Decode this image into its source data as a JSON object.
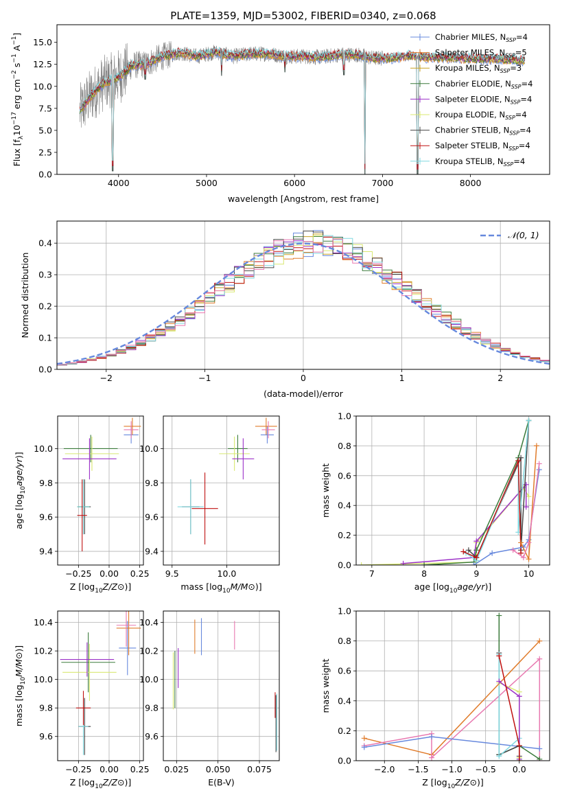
{
  "figure_title": "PLATE=1359, MJD=53002, FIBERID=0340, z=0.068",
  "colors": {
    "c1": "#6688dd",
    "c2": "#e07b2a",
    "c3": "#c8a020",
    "c4": "#3a7a3a",
    "c5": "#9b30c8",
    "c6": "#d8e870",
    "c7": "#444444",
    "c8": "#c01010",
    "c9": "#80d8e0",
    "pink": "#e878b0",
    "gray": "#808080",
    "grid": "#b0b0b0"
  },
  "chart_data": [
    {
      "type": "line",
      "title": "PLATE=1359, MJD=53002, FIBERID=0340, z=0.068",
      "xlabel": "wavelength [Angstrom, rest frame]",
      "ylabel": "Flux [f",
      "xlim": [
        3300,
        8900
      ],
      "ylim": [
        0,
        17
      ],
      "xticks": [
        "4000",
        "5000",
        "6000",
        "7000",
        "8000"
      ],
      "yticks": [
        "0.0",
        "2.5",
        "5.0",
        "7.5",
        "10.0",
        "12.5",
        "15.0"
      ],
      "legend_position": "right",
      "legend": [
        {
          "label": "Chabrier MILES, N",
          "sub": "SSP",
          "suffix": "=4",
          "color": "c1"
        },
        {
          "label": "Salpeter MILES, N",
          "sub": "SSP",
          "suffix": "=5",
          "color": "c2"
        },
        {
          "label": "Kroupa MILES, N",
          "sub": "SSP",
          "suffix": "=3",
          "color": "c3"
        },
        {
          "label": "Chabrier ELODIE, N",
          "sub": "SSP",
          "suffix": "=4",
          "color": "c4"
        },
        {
          "label": "Salpeter ELODIE, N",
          "sub": "SSP",
          "suffix": "=4",
          "color": "c5"
        },
        {
          "label": "Kroupa ELODIE, N",
          "sub": "SSP",
          "suffix": "=4",
          "color": "c6"
        },
        {
          "label": "Chabrier STELIB, N",
          "sub": "SSP",
          "suffix": "=4",
          "color": "c7"
        },
        {
          "label": "Salpeter STELIB, N",
          "sub": "SSP",
          "suffix": "=4",
          "color": "c8"
        },
        {
          "label": "Kroupa STELIB, N",
          "sub": "SSP",
          "suffix": "=4",
          "color": "c9"
        }
      ],
      "continuum": [
        [
          3550,
          7.0
        ],
        [
          3650,
          8.5
        ],
        [
          3750,
          9.6
        ],
        [
          3850,
          10.5
        ],
        [
          3950,
          10.8
        ],
        [
          4050,
          11.4
        ],
        [
          4150,
          12.4
        ],
        [
          4300,
          12.5
        ],
        [
          4500,
          13.4
        ],
        [
          4700,
          13.8
        ],
        [
          4900,
          13.4
        ],
        [
          5100,
          13.9
        ],
        [
          5300,
          13.4
        ],
        [
          5500,
          13.7
        ],
        [
          5700,
          13.7
        ],
        [
          5900,
          13.4
        ],
        [
          6100,
          13.4
        ],
        [
          6300,
          13.3
        ],
        [
          6500,
          13.6
        ],
        [
          6700,
          13.6
        ],
        [
          6900,
          13.2
        ],
        [
          7100,
          13.2
        ],
        [
          7300,
          13.5
        ],
        [
          7500,
          13.3
        ],
        [
          7700,
          13.3
        ],
        [
          7900,
          13.2
        ],
        [
          8100,
          13.1
        ],
        [
          8300,
          13.1
        ],
        [
          8500,
          13.0
        ],
        [
          8600,
          12.9
        ]
      ],
      "dips": [
        [
          3934,
          0.4
        ],
        [
          4300,
          10.8
        ],
        [
          5170,
          11.2
        ],
        [
          5890,
          11.6
        ],
        [
          6563,
          11.3
        ],
        [
          6800,
          0.0
        ],
        [
          7400,
          0.0
        ]
      ]
    },
    {
      "type": "step",
      "xlabel": "(data-model)/error",
      "ylabel": "Normed distribution",
      "xlim": [
        -2.5,
        2.5
      ],
      "ylim": [
        0,
        0.47
      ],
      "xticks": [
        -2,
        -1,
        0,
        1,
        2
      ],
      "xticklabels": [
        "−2",
        "−1",
        "0",
        "1",
        "2"
      ],
      "yticks": [
        0.0,
        0.1,
        0.2,
        0.3,
        0.4
      ],
      "yticklabels": [
        "0.0",
        "0.1",
        "0.2",
        "0.3",
        "0.4"
      ],
      "legend_label": "𝒩(0, 1)",
      "legend_position": "upper right",
      "bin_width": 0.1,
      "bins_from": -2.5,
      "bins_to": 2.5
    },
    {
      "type": "errorbar",
      "xlabel": "Z [log",
      "ylabel": "age  [log",
      "xlim": [
        -0.42,
        0.28
      ],
      "ylim": [
        9.32,
        10.19
      ],
      "xticks": [
        -0.25,
        0.0,
        0.25
      ],
      "xticklabels": [
        "−0.25",
        "0.00",
        "0.25"
      ],
      "yticks": [
        9.4,
        9.6,
        9.8,
        10.0
      ],
      "yticklabels": [
        "9.4",
        "9.6",
        "9.8",
        "10.0"
      ],
      "points": [
        {
          "x": 0.18,
          "xerr": 0.06,
          "y": 10.08,
          "yerr": 0.05,
          "color": "c1"
        },
        {
          "x": 0.19,
          "xerr": 0.07,
          "y": 10.13,
          "yerr": 0.05,
          "color": "c2"
        },
        {
          "x": 0.18,
          "xerr": 0.06,
          "y": 10.11,
          "yerr": 0.05,
          "color": "pink"
        },
        {
          "x": -0.2,
          "xerr": 0.05,
          "y": 9.66,
          "yerr": 0.16,
          "color": "c7"
        },
        {
          "x": -0.21,
          "xerr": 0.05,
          "y": 9.66,
          "yerr": 0.16,
          "color": "c4"
        },
        {
          "x": -0.21,
          "xerr": 0.05,
          "y": 9.66,
          "yerr": 0.16,
          "color": "c9"
        },
        {
          "x": -0.22,
          "xerr": 0.04,
          "y": 9.61,
          "yerr": 0.21,
          "color": "c8"
        },
        {
          "x": -0.15,
          "xerr": 0.22,
          "y": 10.0,
          "yerr": 0.08,
          "color": "c4"
        },
        {
          "x": -0.14,
          "xerr": 0.22,
          "y": 9.97,
          "yerr": 0.1,
          "color": "c6"
        },
        {
          "x": -0.16,
          "xerr": 0.22,
          "y": 9.94,
          "yerr": 0.12,
          "color": "c5"
        }
      ]
    },
    {
      "type": "errorbar",
      "xlabel": "mass [log",
      "ylabel": "",
      "xlim": [
        9.42,
        10.48
      ],
      "ylim": [
        9.32,
        10.19
      ],
      "xticks": [
        9.5,
        10.0
      ],
      "xticklabels": [
        "9.5",
        "10.0"
      ],
      "yticks": [
        9.4,
        9.6,
        9.8,
        10.0
      ],
      "yticklabels": [
        "9.4",
        "9.6",
        "9.8",
        "10.0"
      ],
      "points": [
        {
          "x": 10.37,
          "xerr": 0.06,
          "y": 10.08,
          "yerr": 0.05,
          "color": "c1"
        },
        {
          "x": 10.36,
          "xerr": 0.1,
          "y": 10.13,
          "yerr": 0.05,
          "color": "c2"
        },
        {
          "x": 10.38,
          "xerr": 0.06,
          "y": 10.11,
          "yerr": 0.05,
          "color": "pink"
        },
        {
          "x": 9.67,
          "xerr": 0.08,
          "y": 9.66,
          "yerr": 0.16,
          "color": "c7"
        },
        {
          "x": 9.67,
          "xerr": 0.12,
          "y": 9.66,
          "yerr": 0.16,
          "color": "c9"
        },
        {
          "x": 9.8,
          "xerr": 0.12,
          "y": 9.65,
          "yerr": 0.21,
          "color": "c8"
        },
        {
          "x": 10.1,
          "xerr": 0.09,
          "y": 10.0,
          "yerr": 0.08,
          "color": "c4"
        },
        {
          "x": 10.07,
          "xerr": 0.14,
          "y": 9.97,
          "yerr": 0.1,
          "color": "c6"
        },
        {
          "x": 10.15,
          "xerr": 0.1,
          "y": 9.94,
          "yerr": 0.12,
          "color": "c5"
        }
      ]
    },
    {
      "type": "line",
      "xlabel": "age  [log",
      "ylabel": "mass weight",
      "xlim": [
        6.7,
        10.4
      ],
      "ylim": [
        0,
        1.0
      ],
      "xticks": [
        7,
        8,
        9,
        10
      ],
      "xticklabels": [
        "7",
        "8",
        "9",
        "10"
      ],
      "yticks": [
        0.0,
        0.2,
        0.4,
        0.6,
        0.8,
        1.0
      ],
      "yticklabels": [
        "0.0",
        "0.2",
        "0.4",
        "0.6",
        "0.8",
        "1.0"
      ],
      "series": [
        {
          "color": "c6",
          "points": [
            [
              6.8,
              0.0
            ],
            [
              9.0,
              0.02
            ],
            [
              9.0,
              0.15
            ],
            [
              9.9,
              0.52
            ],
            [
              10.0,
              0.46
            ]
          ]
        },
        {
          "color": "c5",
          "points": [
            [
              7.6,
              0.01
            ],
            [
              8.95,
              0.05
            ],
            [
              9.0,
              0.16
            ],
            [
              9.95,
              0.54
            ],
            [
              9.95,
              0.39
            ]
          ]
        },
        {
          "color": "c4",
          "points": [
            [
              8.0,
              0.0
            ],
            [
              8.95,
              0.02
            ],
            [
              9.0,
              0.1
            ],
            [
              9.8,
              0.72
            ],
            [
              10.0,
              0.97
            ]
          ]
        },
        {
          "color": "c7",
          "points": [
            [
              8.85,
              0.1
            ],
            [
              9.0,
              0.05
            ],
            [
              9.85,
              0.72
            ],
            [
              9.85,
              0.1
            ],
            [
              10.0,
              0.97
            ]
          ]
        },
        {
          "color": "c9",
          "points": [
            [
              8.8,
              0.08
            ],
            [
              9.0,
              0.03
            ],
            [
              9.8,
              0.7
            ],
            [
              9.8,
              0.22
            ],
            [
              10.0,
              0.97
            ]
          ]
        },
        {
          "color": "c8",
          "points": [
            [
              8.75,
              0.09
            ],
            [
              9.0,
              0.05
            ],
            [
              9.8,
              0.7
            ],
            [
              9.85,
              0.08
            ]
          ]
        },
        {
          "color": "c1",
          "points": [
            [
              8.95,
              0.0
            ],
            [
              9.3,
              0.08
            ],
            [
              9.9,
              0.12
            ],
            [
              10.0,
              0.17
            ],
            [
              10.2,
              0.64
            ]
          ]
        },
        {
          "color": "c2",
          "points": [
            [
              9.85,
              0.15
            ],
            [
              10.0,
              0.04
            ],
            [
              10.15,
              0.8
            ]
          ]
        },
        {
          "color": "pink",
          "points": [
            [
              9.7,
              0.1
            ],
            [
              9.9,
              0.05
            ],
            [
              10.0,
              0.15
            ],
            [
              10.2,
              0.68
            ]
          ]
        }
      ]
    },
    {
      "type": "errorbar",
      "xlabel": "Z [log",
      "ylabel": "mass [log",
      "xlim": [
        -0.42,
        0.28
      ],
      "ylim": [
        9.43,
        10.48
      ],
      "xticks": [
        -0.25,
        0.0,
        0.25
      ],
      "xticklabels": [
        "−0.25",
        "0.00",
        "0.25"
      ],
      "yticks": [
        9.6,
        9.8,
        10.0,
        10.2,
        10.4
      ],
      "yticklabels": [
        "9.6",
        "9.8",
        "10.0",
        "10.2",
        "10.4"
      ],
      "points": [
        {
          "x": 0.15,
          "xerr": 0.07,
          "y": 10.22,
          "yerr": 0.19,
          "color": "c1"
        },
        {
          "x": 0.16,
          "xerr": 0.1,
          "y": 10.36,
          "yerr": 0.19,
          "color": "c2"
        },
        {
          "x": 0.14,
          "xerr": 0.08,
          "y": 10.38,
          "yerr": 0.15,
          "color": "pink"
        },
        {
          "x": -0.2,
          "xerr": 0.05,
          "y": 9.67,
          "yerr": 0.2,
          "color": "c7"
        },
        {
          "x": -0.21,
          "xerr": 0.04,
          "y": 9.67,
          "yerr": 0.2,
          "color": "c9"
        },
        {
          "x": -0.21,
          "xerr": 0.06,
          "y": 9.8,
          "yerr": 0.12,
          "color": "c8"
        },
        {
          "x": -0.17,
          "xerr": 0.22,
          "y": 10.12,
          "yerr": 0.21,
          "color": "c4"
        },
        {
          "x": -0.16,
          "xerr": 0.22,
          "y": 10.05,
          "yerr": 0.2,
          "color": "c6"
        },
        {
          "x": -0.18,
          "xerr": 0.22,
          "y": 10.14,
          "yerr": 0.12,
          "color": "c5"
        }
      ]
    },
    {
      "type": "errorbar",
      "xlabel": "E(B-V)",
      "ylabel": "",
      "xlim": [
        0.017,
        0.087
      ],
      "ylim": [
        9.43,
        10.48
      ],
      "xticks": [
        0.025,
        0.05,
        0.075
      ],
      "xticklabels": [
        "0.025",
        "0.050",
        "0.075"
      ],
      "yticks": [
        9.6,
        9.8,
        10.0,
        10.2,
        10.4
      ],
      "yticklabels": [
        "9.6",
        "9.8",
        "10.0",
        "10.2",
        "10.4"
      ],
      "points": [
        {
          "x": 0.04,
          "xerr": 0,
          "y": 10.3,
          "yerr": 0.13,
          "color": "c1"
        },
        {
          "x": 0.036,
          "xerr": 0,
          "y": 10.3,
          "yerr": 0.12,
          "color": "c2"
        },
        {
          "x": 0.06,
          "xerr": 0,
          "y": 10.31,
          "yerr": 0.1,
          "color": "pink"
        },
        {
          "x": 0.024,
          "xerr": 0,
          "y": 10.0,
          "yerr": 0.2,
          "color": "c4"
        },
        {
          "x": 0.023,
          "xerr": 0,
          "y": 9.99,
          "yerr": 0.2,
          "color": "c6"
        },
        {
          "x": 0.026,
          "xerr": 0,
          "y": 10.08,
          "yerr": 0.14,
          "color": "c5"
        },
        {
          "x": 0.085,
          "xerr": 0,
          "y": 9.69,
          "yerr": 0.2,
          "color": "c7"
        },
        {
          "x": 0.0855,
          "xerr": 0,
          "y": 9.7,
          "yerr": 0.2,
          "color": "c9"
        },
        {
          "x": 0.0845,
          "xerr": 0,
          "y": 9.82,
          "yerr": 0.09,
          "color": "c8"
        }
      ]
    },
    {
      "type": "line",
      "xlabel": "Z [log",
      "ylabel": "mass weight",
      "xlim": [
        -2.42,
        0.45
      ],
      "ylim": [
        0,
        1.0
      ],
      "xticks": [
        -2.0,
        -1.5,
        -1.0,
        -0.5,
        0.0
      ],
      "xticklabels": [
        "−2.0",
        "−1.5",
        "−1.0",
        "−0.5",
        "0.0"
      ],
      "yticks": [
        0.0,
        0.2,
        0.4,
        0.6,
        0.8,
        1.0
      ],
      "yticklabels": [
        "0.0",
        "0.2",
        "0.4",
        "0.6",
        "0.8",
        "1.0"
      ],
      "series": [
        {
          "color": "c2",
          "points": [
            [
              -2.3,
              0.15
            ],
            [
              -1.3,
              0.04
            ],
            [
              0.3,
              0.8
            ]
          ]
        },
        {
          "color": "pink",
          "points": [
            [
              -2.3,
              0.1
            ],
            [
              -1.3,
              0.18
            ],
            [
              -1.3,
              0.02
            ],
            [
              0.3,
              0.68
            ],
            [
              0.3,
              0.0
            ]
          ]
        },
        {
          "color": "c1",
          "points": [
            [
              -2.3,
              0.09
            ],
            [
              -1.3,
              0.16
            ],
            [
              0.3,
              0.08
            ]
          ]
        },
        {
          "color": "c4",
          "points": [
            [
              -0.3,
              0.97
            ],
            [
              -0.3,
              0.04
            ],
            [
              0.0,
              0.1
            ],
            [
              0.3,
              0.01
            ]
          ]
        },
        {
          "color": "c7",
          "points": [
            [
              -0.3,
              0.72
            ],
            [
              -0.3,
              0.04
            ],
            [
              0.0,
              0.1
            ],
            [
              0.0,
              0.03
            ]
          ]
        },
        {
          "color": "c9",
          "points": [
            [
              -0.3,
              0.71
            ],
            [
              -0.3,
              0.03
            ],
            [
              0.0,
              0.15
            ],
            [
              0.0,
              0.01
            ]
          ]
        },
        {
          "color": "c6",
          "points": [
            [
              -0.3,
              0.52
            ],
            [
              0.0,
              0.46
            ],
            [
              0.0,
              0.02
            ]
          ]
        },
        {
          "color": "c5",
          "points": [
            [
              -0.3,
              0.53
            ],
            [
              0.0,
              0.43
            ],
            [
              0.0,
              0.01
            ]
          ]
        },
        {
          "color": "c8",
          "points": [
            [
              -0.3,
              0.7
            ],
            [
              0.0,
              0.1
            ],
            [
              0.0,
              0.0
            ]
          ]
        }
      ]
    }
  ]
}
